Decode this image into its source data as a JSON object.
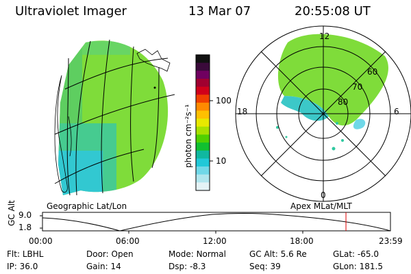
{
  "header": {
    "title": "Ultraviolet Imager",
    "date": "13 Mar 07",
    "time": "20:55:08 UT"
  },
  "colorbar": {
    "unit_label": "photon cm⁻²s⁻¹",
    "ticks": [
      "100",
      "10"
    ],
    "colors": [
      "#111111",
      "#3a0a3a",
      "#700060",
      "#a00030",
      "#d0001a",
      "#f04000",
      "#ff8a00",
      "#ffc000",
      "#e8e800",
      "#a8e000",
      "#50d000",
      "#10c030",
      "#10b8a0",
      "#20c8d8",
      "#70d8e8",
      "#b0e6ee",
      "#e4f3f6"
    ]
  },
  "geo_panel": {
    "label": "Geographic Lat/Lon"
  },
  "polar_panel": {
    "label": "Apex  MLat/MLT",
    "mlt_labels": {
      "top": "12",
      "left": "18",
      "right": "6",
      "bottom": "0"
    },
    "lat_labels": [
      "60",
      "70",
      "80"
    ]
  },
  "orbit": {
    "y_label": "GC Alt",
    "y_ticks": [
      "9.0",
      "1.8"
    ],
    "x_ticks": [
      "00:00",
      "06:00",
      "12:00",
      "18:00",
      "23:59"
    ],
    "marker_time": "20:55",
    "marker_color": "#e00000"
  },
  "info": {
    "row1": [
      {
        "label": "Flt:",
        "value": "LBHL"
      },
      {
        "label": "Door:",
        "value": "Open"
      },
      {
        "label": "Mode:",
        "value": "Normal"
      },
      {
        "label": "GC Alt:",
        "value": "5.6 Re"
      },
      {
        "label": "GLat:",
        "value": "-65.0"
      }
    ],
    "row2": [
      {
        "label": "IP:",
        "value": "36.0"
      },
      {
        "label": "Gain:",
        "value": "14"
      },
      {
        "label": "Dsp:",
        "value": "-8.3"
      },
      {
        "label": "Seq:",
        "value": "39"
      },
      {
        "label": "GLon:",
        "value": "181.5"
      }
    ]
  }
}
